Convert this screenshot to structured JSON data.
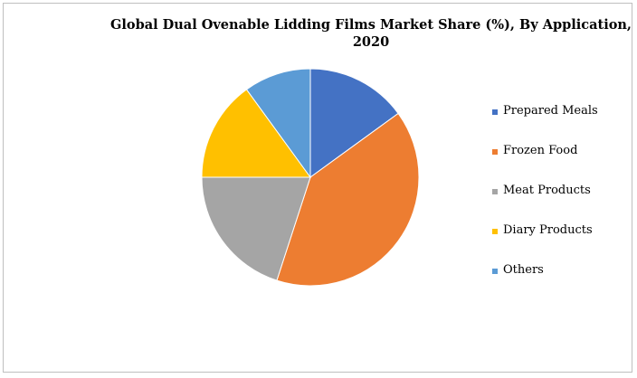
{
  "chart_data": {
    "type": "pie",
    "title_line1": "Global Dual Ovenable Lidding Films Market Share (%), By Application,",
    "title_line2": "2020",
    "categories": [
      "Prepared Meals",
      "Frozen Food",
      "Meat Products",
      "Diary Products",
      "Others"
    ],
    "values": [
      15,
      40,
      20,
      15,
      10
    ],
    "colors": [
      "#4472c4",
      "#ed7d31",
      "#a5a5a5",
      "#ffc000",
      "#5b9bd5"
    ],
    "legend_position": "right",
    "start_angle": "12 o'clock, clockwise"
  }
}
